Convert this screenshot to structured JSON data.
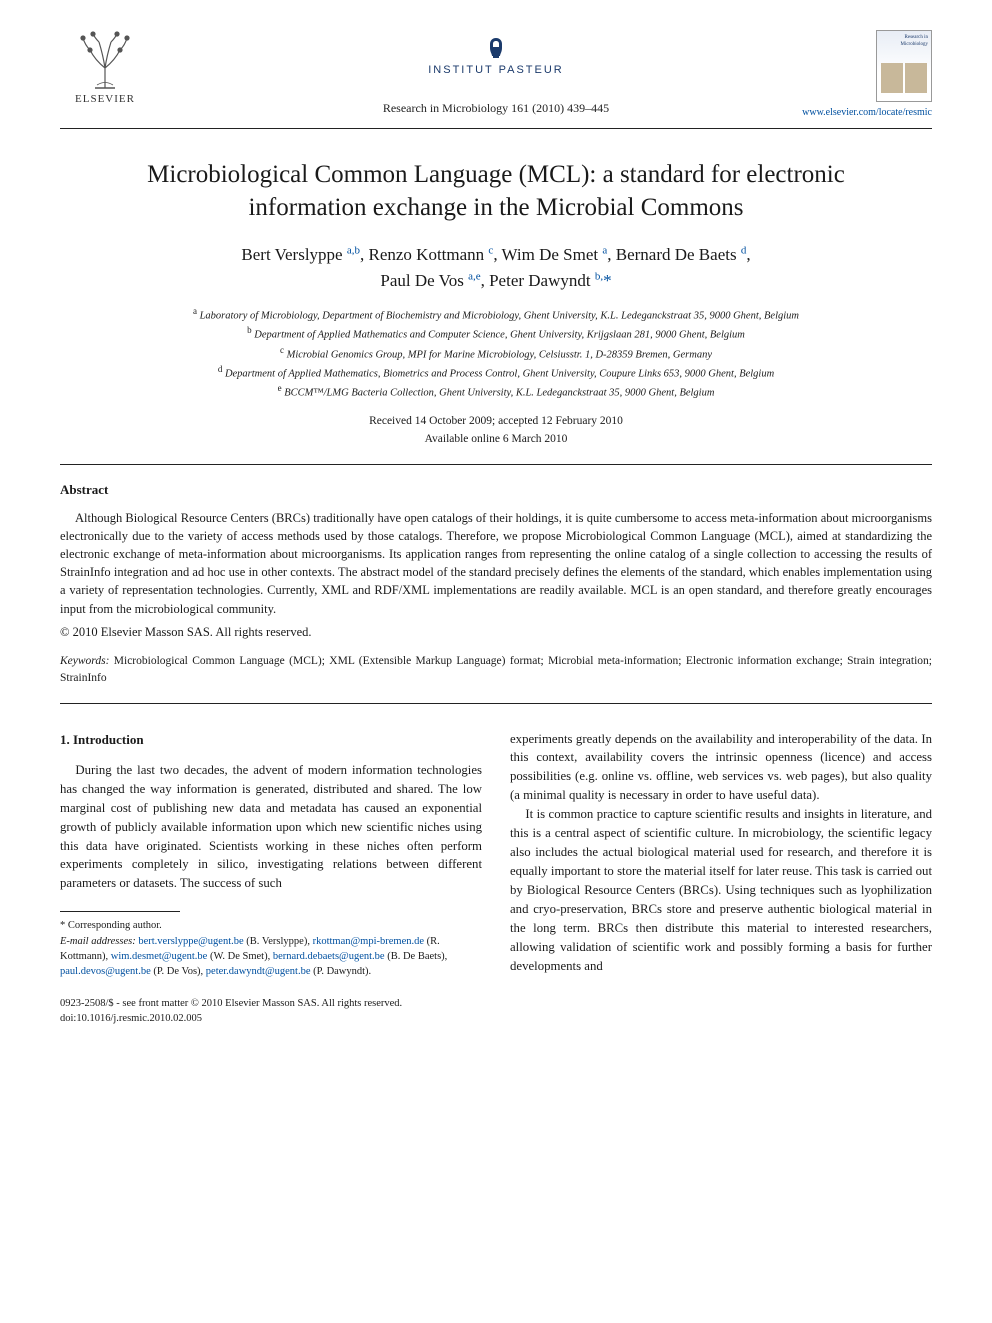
{
  "header": {
    "publisher_name": "ELSEVIER",
    "institute_name": "INSTITUT PASTEUR",
    "journal_reference": "Research in Microbiology 161 (2010) 439–445",
    "journal_cover_title": "Research in Microbiology",
    "journal_url": "www.elsevier.com/locate/resmic"
  },
  "article": {
    "title": "Microbiological Common Language (MCL): a standard for electronic information exchange in the Microbial Commons",
    "authors_line1_html": "Bert Verslyppe <sup class='sup-link'>a,b</sup>, Renzo Kottmann <sup class='sup-link'>c</sup>, Wim De Smet <sup class='sup-link'>a</sup>, Bernard De Baets <sup class='sup-link'>d</sup>,",
    "authors_line2_html": "Paul De Vos <sup class='sup-link'>a,e</sup>, Peter Dawyndt <sup class='sup-link'>b,</sup><a href='#'>*</a>",
    "affiliations": [
      "a Laboratory of Microbiology, Department of Biochemistry and Microbiology, Ghent University, K.L. Ledeganckstraat 35, 9000 Ghent, Belgium",
      "b Department of Applied Mathematics and Computer Science, Ghent University, Krijgslaan 281, 9000 Ghent, Belgium",
      "c Microbial Genomics Group, MPI for Marine Microbiology, Celsiusstr. 1, D-28359 Bremen, Germany",
      "d Department of Applied Mathematics, Biometrics and Process Control, Ghent University, Coupure Links 653, 9000 Ghent, Belgium",
      "e BCCM™/LMG Bacteria Collection, Ghent University, K.L. Ledeganckstraat 35, 9000 Ghent, Belgium"
    ],
    "received_accepted": "Received 14 October 2009; accepted 12 February 2010",
    "available_online": "Available online 6 March 2010"
  },
  "abstract": {
    "heading": "Abstract",
    "text": "Although Biological Resource Centers (BRCs) traditionally have open catalogs of their holdings, it is quite cumbersome to access meta-information about microorganisms electronically due to the variety of access methods used by those catalogs. Therefore, we propose Microbiological Common Language (MCL), aimed at standardizing the electronic exchange of meta-information about microorganisms. Its application ranges from representing the online catalog of a single collection to accessing the results of StrainInfo integration and ad hoc use in other contexts. The abstract model of the standard precisely defines the elements of the standard, which enables implementation using a variety of representation technologies. Currently, XML and RDF/XML implementations are readily available. MCL is an open standard, and therefore greatly encourages input from the microbiological community.",
    "copyright": "© 2010 Elsevier Masson SAS. All rights reserved."
  },
  "keywords": {
    "label": "Keywords:",
    "text": "Microbiological Common Language (MCL); XML (Extensible Markup Language) format; Microbial meta-information; Electronic information exchange; Strain integration; StrainInfo"
  },
  "body": {
    "section_heading": "1. Introduction",
    "col1_p1": "During the last two decades, the advent of modern information technologies has changed the way information is generated, distributed and shared. The low marginal cost of publishing new data and metadata has caused an exponential growth of publicly available information upon which new scientific niches using this data have originated. Scientists working in these niches often perform experiments completely in silico, investigating relations between different parameters or datasets. The success of such",
    "col2_p1": "experiments greatly depends on the availability and interoperability of the data. In this context, availability covers the intrinsic openness (licence) and access possibilities (e.g. online vs. offline, web services vs. web pages), but also quality (a minimal quality is necessary in order to have useful data).",
    "col2_p2": "It is common practice to capture scientific results and insights in literature, and this is a central aspect of scientific culture. In microbiology, the scientific legacy also includes the actual biological material used for research, and therefore it is equally important to store the material itself for later reuse. This task is carried out by Biological Resource Centers (BRCs). Using techniques such as lyophilization and cryo-preservation, BRCs store and preserve authentic biological material in the long term. BRCs then distribute this material to interested researchers, allowing validation of scientific work and possibly forming a basis for further developments and"
  },
  "footnote": {
    "corresponding": "* Corresponding author.",
    "email_label": "E-mail addresses:",
    "emails": [
      {
        "addr": "bert.verslyppe@ugent.be",
        "who": "(B. Verslyppe)"
      },
      {
        "addr": "rkottman@mpi-bremen.de",
        "who": "(R. Kottmann)"
      },
      {
        "addr": "wim.desmet@ugent.be",
        "who": "(W. De Smet)"
      },
      {
        "addr": "bernard.debaets@ugent.be",
        "who": "(B. De Baets)"
      },
      {
        "addr": "paul.devos@ugent.be",
        "who": "(P. De Vos)"
      },
      {
        "addr": "peter.dawyndt@ugent.be",
        "who": "(P. Dawyndt)."
      }
    ]
  },
  "footer": {
    "issn_line": "0923-2508/$ - see front matter © 2010 Elsevier Masson SAS. All rights reserved.",
    "doi_line": "doi:10.1016/j.resmic.2010.02.005"
  },
  "colors": {
    "link": "#0050a0",
    "institute": "#1b3a6b",
    "text": "#1a1a1a"
  }
}
